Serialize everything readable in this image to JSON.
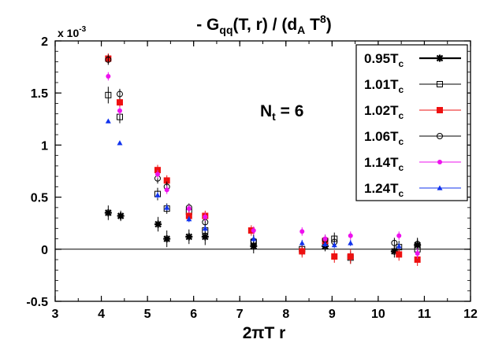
{
  "chart_data": {
    "type": "scatter",
    "title": {
      "prefix": "- G",
      "sub1": "qq",
      "mid": "(T, r) / (d",
      "sub2": "A",
      "mid2": " T",
      "sup": "8",
      "suffix": ")"
    },
    "xlabel": "2πT r",
    "ylabel": "",
    "y_multiplier": {
      "base": "x 10",
      "exp": "-3"
    },
    "annotation": {
      "main": "N",
      "sub": "t",
      "rest": " = 6"
    },
    "xlim": [
      3,
      12
    ],
    "ylim": [
      -0.5,
      2
    ],
    "x_ticks": [
      3,
      4,
      5,
      6,
      7,
      8,
      9,
      10,
      11,
      12
    ],
    "y_ticks": [
      -0.5,
      0,
      0.5,
      1,
      1.5,
      2
    ],
    "y_tick_labels": [
      "-0.5",
      "0",
      "0.5",
      "1",
      "1.5",
      "2"
    ],
    "zero_line": true,
    "grid": false,
    "legend_position": "top-right",
    "series": [
      {
        "name": "0.95T",
        "sub": "c",
        "marker": "star",
        "color": "#000000",
        "points": [
          [
            4.15,
            0.35,
            0.07
          ],
          [
            4.42,
            0.32,
            0.05
          ],
          [
            5.23,
            0.24,
            0.07
          ],
          [
            5.42,
            0.1,
            0.08
          ],
          [
            5.9,
            0.12,
            0.07
          ],
          [
            6.25,
            0.12,
            0.08
          ],
          [
            7.3,
            0.03,
            0.07
          ],
          [
            8.85,
            0.03,
            0.05
          ],
          [
            10.35,
            -0.02,
            0.06
          ],
          [
            10.85,
            0.04,
            0.06
          ]
        ]
      },
      {
        "name": "1.01T",
        "sub": "c",
        "marker": "open-square",
        "color": "#000000",
        "points": [
          [
            4.15,
            1.48,
            0.08
          ],
          [
            4.4,
            1.27,
            0.06
          ],
          [
            5.22,
            0.53,
            0.06
          ],
          [
            5.42,
            0.39,
            0.05
          ],
          [
            5.9,
            0.36,
            0.05
          ],
          [
            6.25,
            0.18,
            0.06
          ],
          [
            7.3,
            0.07,
            0.07
          ],
          [
            8.35,
            0.0,
            0.06
          ],
          [
            9.05,
            0.1,
            0.06
          ],
          [
            9.4,
            -0.08,
            0.06
          ],
          [
            10.45,
            0.02,
            0.06
          ],
          [
            10.85,
            0.0,
            0.06
          ]
        ]
      },
      {
        "name": "1.02T",
        "sub": "c",
        "marker": "filled-square",
        "color": "#ee1111",
        "points": [
          [
            4.15,
            1.83,
            0.05
          ],
          [
            4.4,
            1.41,
            0.05
          ],
          [
            5.22,
            0.76,
            0.05
          ],
          [
            5.42,
            0.66,
            0.05
          ],
          [
            5.9,
            0.32,
            0.04
          ],
          [
            6.25,
            0.32,
            0.05
          ],
          [
            7.25,
            0.18,
            0.05
          ],
          [
            8.35,
            -0.02,
            0.06
          ],
          [
            8.85,
            0.08,
            0.05
          ],
          [
            9.05,
            -0.07,
            0.06
          ],
          [
            9.4,
            -0.07,
            0.07
          ],
          [
            10.45,
            -0.05,
            0.06
          ],
          [
            10.85,
            -0.1,
            0.06
          ]
        ]
      },
      {
        "name": "1.06T",
        "sub": "c",
        "marker": "open-circle",
        "color": "#000000",
        "points": [
          [
            4.15,
            1.82,
            0.05
          ],
          [
            4.4,
            1.49,
            0.05
          ],
          [
            5.22,
            0.68,
            0.05
          ],
          [
            5.42,
            0.6,
            0.05
          ],
          [
            5.9,
            0.4,
            0.04
          ],
          [
            6.25,
            0.26,
            0.05
          ],
          [
            7.3,
            0.08,
            0.05
          ],
          [
            8.85,
            0.09,
            0.05
          ],
          [
            9.05,
            0.07,
            0.05
          ],
          [
            10.35,
            0.06,
            0.05
          ],
          [
            10.85,
            0.05,
            0.06
          ]
        ]
      },
      {
        "name": "1.14T",
        "sub": "c",
        "marker": "filled-circle",
        "color": "#ee11ee",
        "points": [
          [
            4.15,
            1.66,
            0.04
          ],
          [
            4.4,
            1.33,
            0.04
          ],
          [
            5.22,
            0.72,
            0.04
          ],
          [
            5.42,
            0.57,
            0.04
          ],
          [
            5.9,
            0.39,
            0.04
          ],
          [
            6.25,
            0.31,
            0.04
          ],
          [
            7.3,
            0.18,
            0.04
          ],
          [
            8.35,
            0.17,
            0.04
          ],
          [
            8.85,
            0.1,
            0.04
          ],
          [
            9.4,
            0.13,
            0.04
          ],
          [
            10.45,
            0.13,
            0.04
          ],
          [
            10.85,
            -0.04,
            0.05
          ]
        ]
      },
      {
        "name": "1.24T",
        "sub": "c",
        "marker": "filled-triangle",
        "color": "#1133ee",
        "points": [
          [
            4.15,
            1.23,
            0.0
          ],
          [
            4.4,
            1.02,
            0.0
          ],
          [
            5.22,
            0.52,
            0.03
          ],
          [
            5.42,
            0.4,
            0.03
          ],
          [
            5.9,
            0.29,
            0.03
          ],
          [
            6.25,
            0.2,
            0.03
          ],
          [
            7.3,
            0.1,
            0.03
          ],
          [
            8.35,
            0.06,
            0.03
          ],
          [
            8.85,
            0.05,
            0.03
          ],
          [
            9.05,
            0.04,
            0.03
          ],
          [
            9.4,
            0.06,
            0.03
          ],
          [
            10.45,
            0.03,
            0.03
          ]
        ]
      }
    ]
  }
}
